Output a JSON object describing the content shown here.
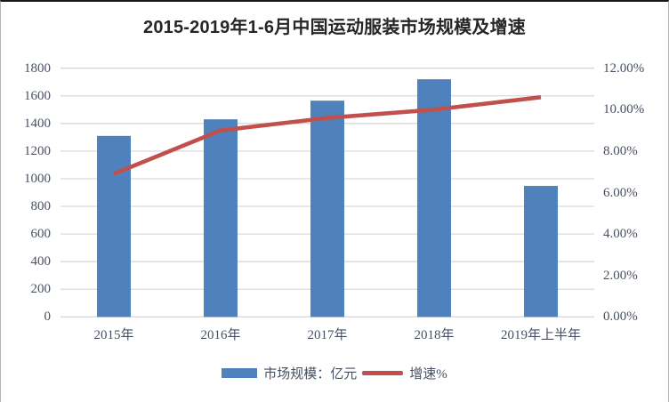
{
  "chart_data": {
    "type": "combo-bar-line",
    "title": "2015-2019年1-6月中国运动服装市场规模及增速",
    "categories": [
      "2015年",
      "2016年",
      "2017年",
      "2018年",
      "2019年上半年"
    ],
    "series": [
      {
        "name": "市场规模：亿元",
        "type": "bar",
        "axis": "left",
        "color": "#4F81BD",
        "values": [
          1310,
          1430,
          1565,
          1720,
          948
        ]
      },
      {
        "name": "增速%",
        "type": "line",
        "axis": "right",
        "color": "#C0504D",
        "values": [
          6.9,
          9.0,
          9.6,
          10.0,
          10.6
        ]
      }
    ],
    "left_axis": {
      "min": 0,
      "max": 1800,
      "step": 200,
      "tick_labels": [
        "1800",
        "1600",
        "1400",
        "1200",
        "1000",
        "800",
        "600",
        "400",
        "200",
        "0"
      ]
    },
    "right_axis": {
      "min": 0,
      "max": 12,
      "step": 2,
      "tick_labels": [
        "12.00%",
        "10.00%",
        "8.00%",
        "6.00%",
        "4.00%",
        "2.00%",
        "0.00%"
      ]
    },
    "legend": [
      "市场规模：亿元",
      "增速%"
    ],
    "legend_position": "bottom",
    "grid": true,
    "grid_color": "#d9d9d9",
    "background": "#ffffff"
  }
}
